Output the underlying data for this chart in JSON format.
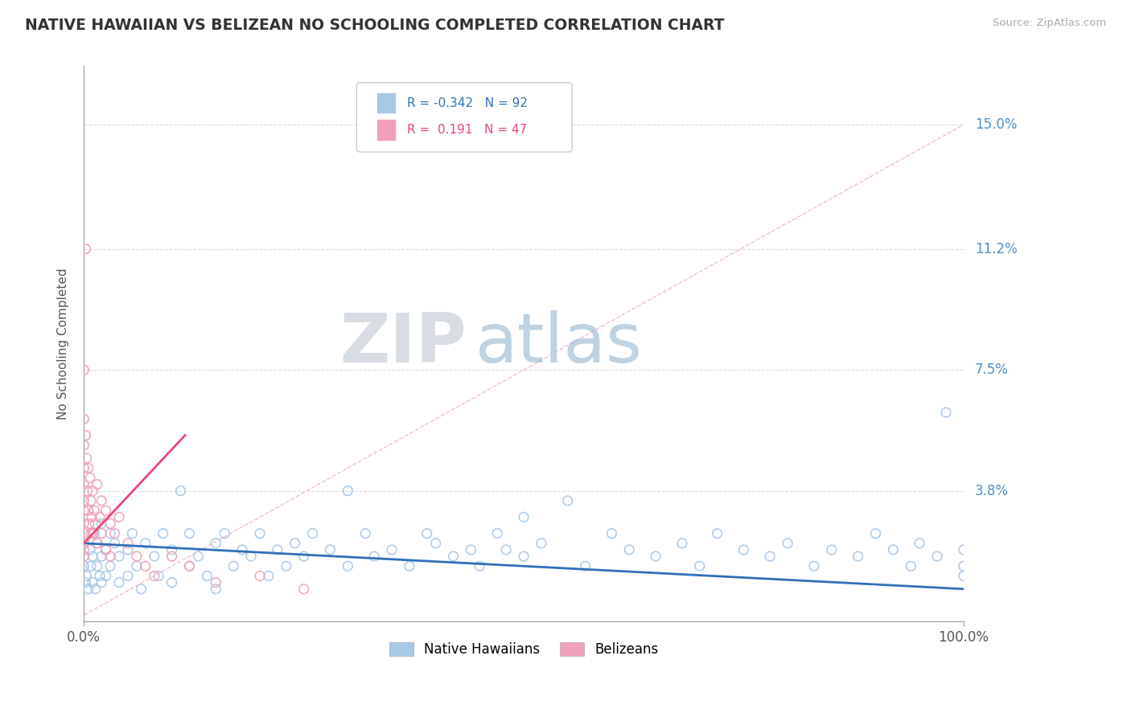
{
  "title": "NATIVE HAWAIIAN VS BELIZEAN NO SCHOOLING COMPLETED CORRELATION CHART",
  "source": "Source: ZipAtlas.com",
  "ylabel": "No Schooling Completed",
  "blue_R": -0.342,
  "blue_N": 92,
  "pink_R": 0.191,
  "pink_N": 47,
  "blue_color": "#a8c8e8",
  "pink_color": "#f0a0b8",
  "blue_line_color": "#3070b8",
  "pink_line_color": "#e84878",
  "diag_line_color": "#f0a0b8",
  "ytick_labels": [
    "",
    "3.8%",
    "7.5%",
    "11.2%",
    "15.0%"
  ],
  "ytick_values": [
    0.0,
    0.038,
    0.075,
    0.112,
    0.15
  ],
  "xlim": [
    0.0,
    1.0
  ],
  "ylim": [
    -0.002,
    0.168
  ],
  "background_color": "#ffffff",
  "grid_color": "#cccccc",
  "right_label_color": "#5090c8",
  "watermark_zip_color": "#c8d8e8",
  "watermark_atlas_color": "#90b8d8",
  "blue_scatter_x": [
    0.0,
    0.002,
    0.003,
    0.005,
    0.007,
    0.008,
    0.01,
    0.01,
    0.012,
    0.013,
    0.015,
    0.015,
    0.018,
    0.02,
    0.02,
    0.02,
    0.025,
    0.025,
    0.03,
    0.03,
    0.035,
    0.04,
    0.04,
    0.05,
    0.05,
    0.055,
    0.06,
    0.065,
    0.07,
    0.08,
    0.085,
    0.09,
    0.1,
    0.1,
    0.11,
    0.12,
    0.12,
    0.13,
    0.14,
    0.15,
    0.15,
    0.16,
    0.17,
    0.18,
    0.19,
    0.2,
    0.21,
    0.22,
    0.23,
    0.24,
    0.25,
    0.26,
    0.28,
    0.3,
    0.3,
    0.32,
    0.33,
    0.35,
    0.37,
    0.39,
    0.4,
    0.42,
    0.44,
    0.45,
    0.47,
    0.48,
    0.5,
    0.5,
    0.52,
    0.55,
    0.57,
    0.6,
    0.62,
    0.65,
    0.68,
    0.7,
    0.72,
    0.75,
    0.78,
    0.8,
    0.83,
    0.85,
    0.88,
    0.9,
    0.92,
    0.94,
    0.95,
    0.97,
    0.98,
    1.0,
    1.0,
    1.0
  ],
  "blue_scatter_y": [
    0.015,
    0.01,
    0.012,
    0.008,
    0.02,
    0.015,
    0.018,
    0.01,
    0.025,
    0.008,
    0.022,
    0.015,
    0.012,
    0.028,
    0.018,
    0.01,
    0.02,
    0.012,
    0.025,
    0.015,
    0.022,
    0.018,
    0.01,
    0.02,
    0.012,
    0.025,
    0.015,
    0.008,
    0.022,
    0.018,
    0.012,
    0.025,
    0.02,
    0.01,
    0.038,
    0.015,
    0.025,
    0.018,
    0.012,
    0.022,
    0.008,
    0.025,
    0.015,
    0.02,
    0.018,
    0.025,
    0.012,
    0.02,
    0.015,
    0.022,
    0.018,
    0.025,
    0.02,
    0.038,
    0.015,
    0.025,
    0.018,
    0.02,
    0.015,
    0.025,
    0.022,
    0.018,
    0.02,
    0.015,
    0.025,
    0.02,
    0.03,
    0.018,
    0.022,
    0.035,
    0.015,
    0.025,
    0.02,
    0.018,
    0.022,
    0.015,
    0.025,
    0.02,
    0.018,
    0.022,
    0.015,
    0.02,
    0.018,
    0.025,
    0.02,
    0.015,
    0.022,
    0.018,
    0.062,
    0.02,
    0.015,
    0.012
  ],
  "pink_scatter_x": [
    0.0,
    0.0,
    0.0,
    0.0,
    0.0,
    0.0,
    0.0,
    0.0,
    0.0,
    0.0,
    0.0,
    0.0,
    0.002,
    0.002,
    0.003,
    0.004,
    0.005,
    0.005,
    0.006,
    0.007,
    0.008,
    0.008,
    0.009,
    0.01,
    0.01,
    0.012,
    0.013,
    0.015,
    0.015,
    0.018,
    0.02,
    0.02,
    0.025,
    0.025,
    0.03,
    0.03,
    0.035,
    0.04,
    0.05,
    0.06,
    0.07,
    0.08,
    0.1,
    0.12,
    0.15,
    0.2,
    0.25
  ],
  "pink_scatter_y": [
    0.075,
    0.06,
    0.052,
    0.045,
    0.04,
    0.035,
    0.032,
    0.028,
    0.025,
    0.022,
    0.02,
    0.018,
    0.112,
    0.055,
    0.048,
    0.038,
    0.045,
    0.032,
    0.028,
    0.042,
    0.035,
    0.025,
    0.03,
    0.038,
    0.025,
    0.032,
    0.028,
    0.04,
    0.022,
    0.03,
    0.035,
    0.025,
    0.032,
    0.02,
    0.028,
    0.018,
    0.025,
    0.03,
    0.022,
    0.018,
    0.015,
    0.012,
    0.018,
    0.015,
    0.01,
    0.012,
    0.008
  ],
  "blue_line_x": [
    0.0,
    1.0
  ],
  "blue_line_y": [
    0.022,
    0.008
  ],
  "pink_line_x": [
    0.0,
    0.115
  ],
  "pink_line_y": [
    0.022,
    0.055
  ],
  "diag_line_x": [
    0.0,
    1.0
  ],
  "diag_line_y": [
    0.0,
    0.15
  ]
}
